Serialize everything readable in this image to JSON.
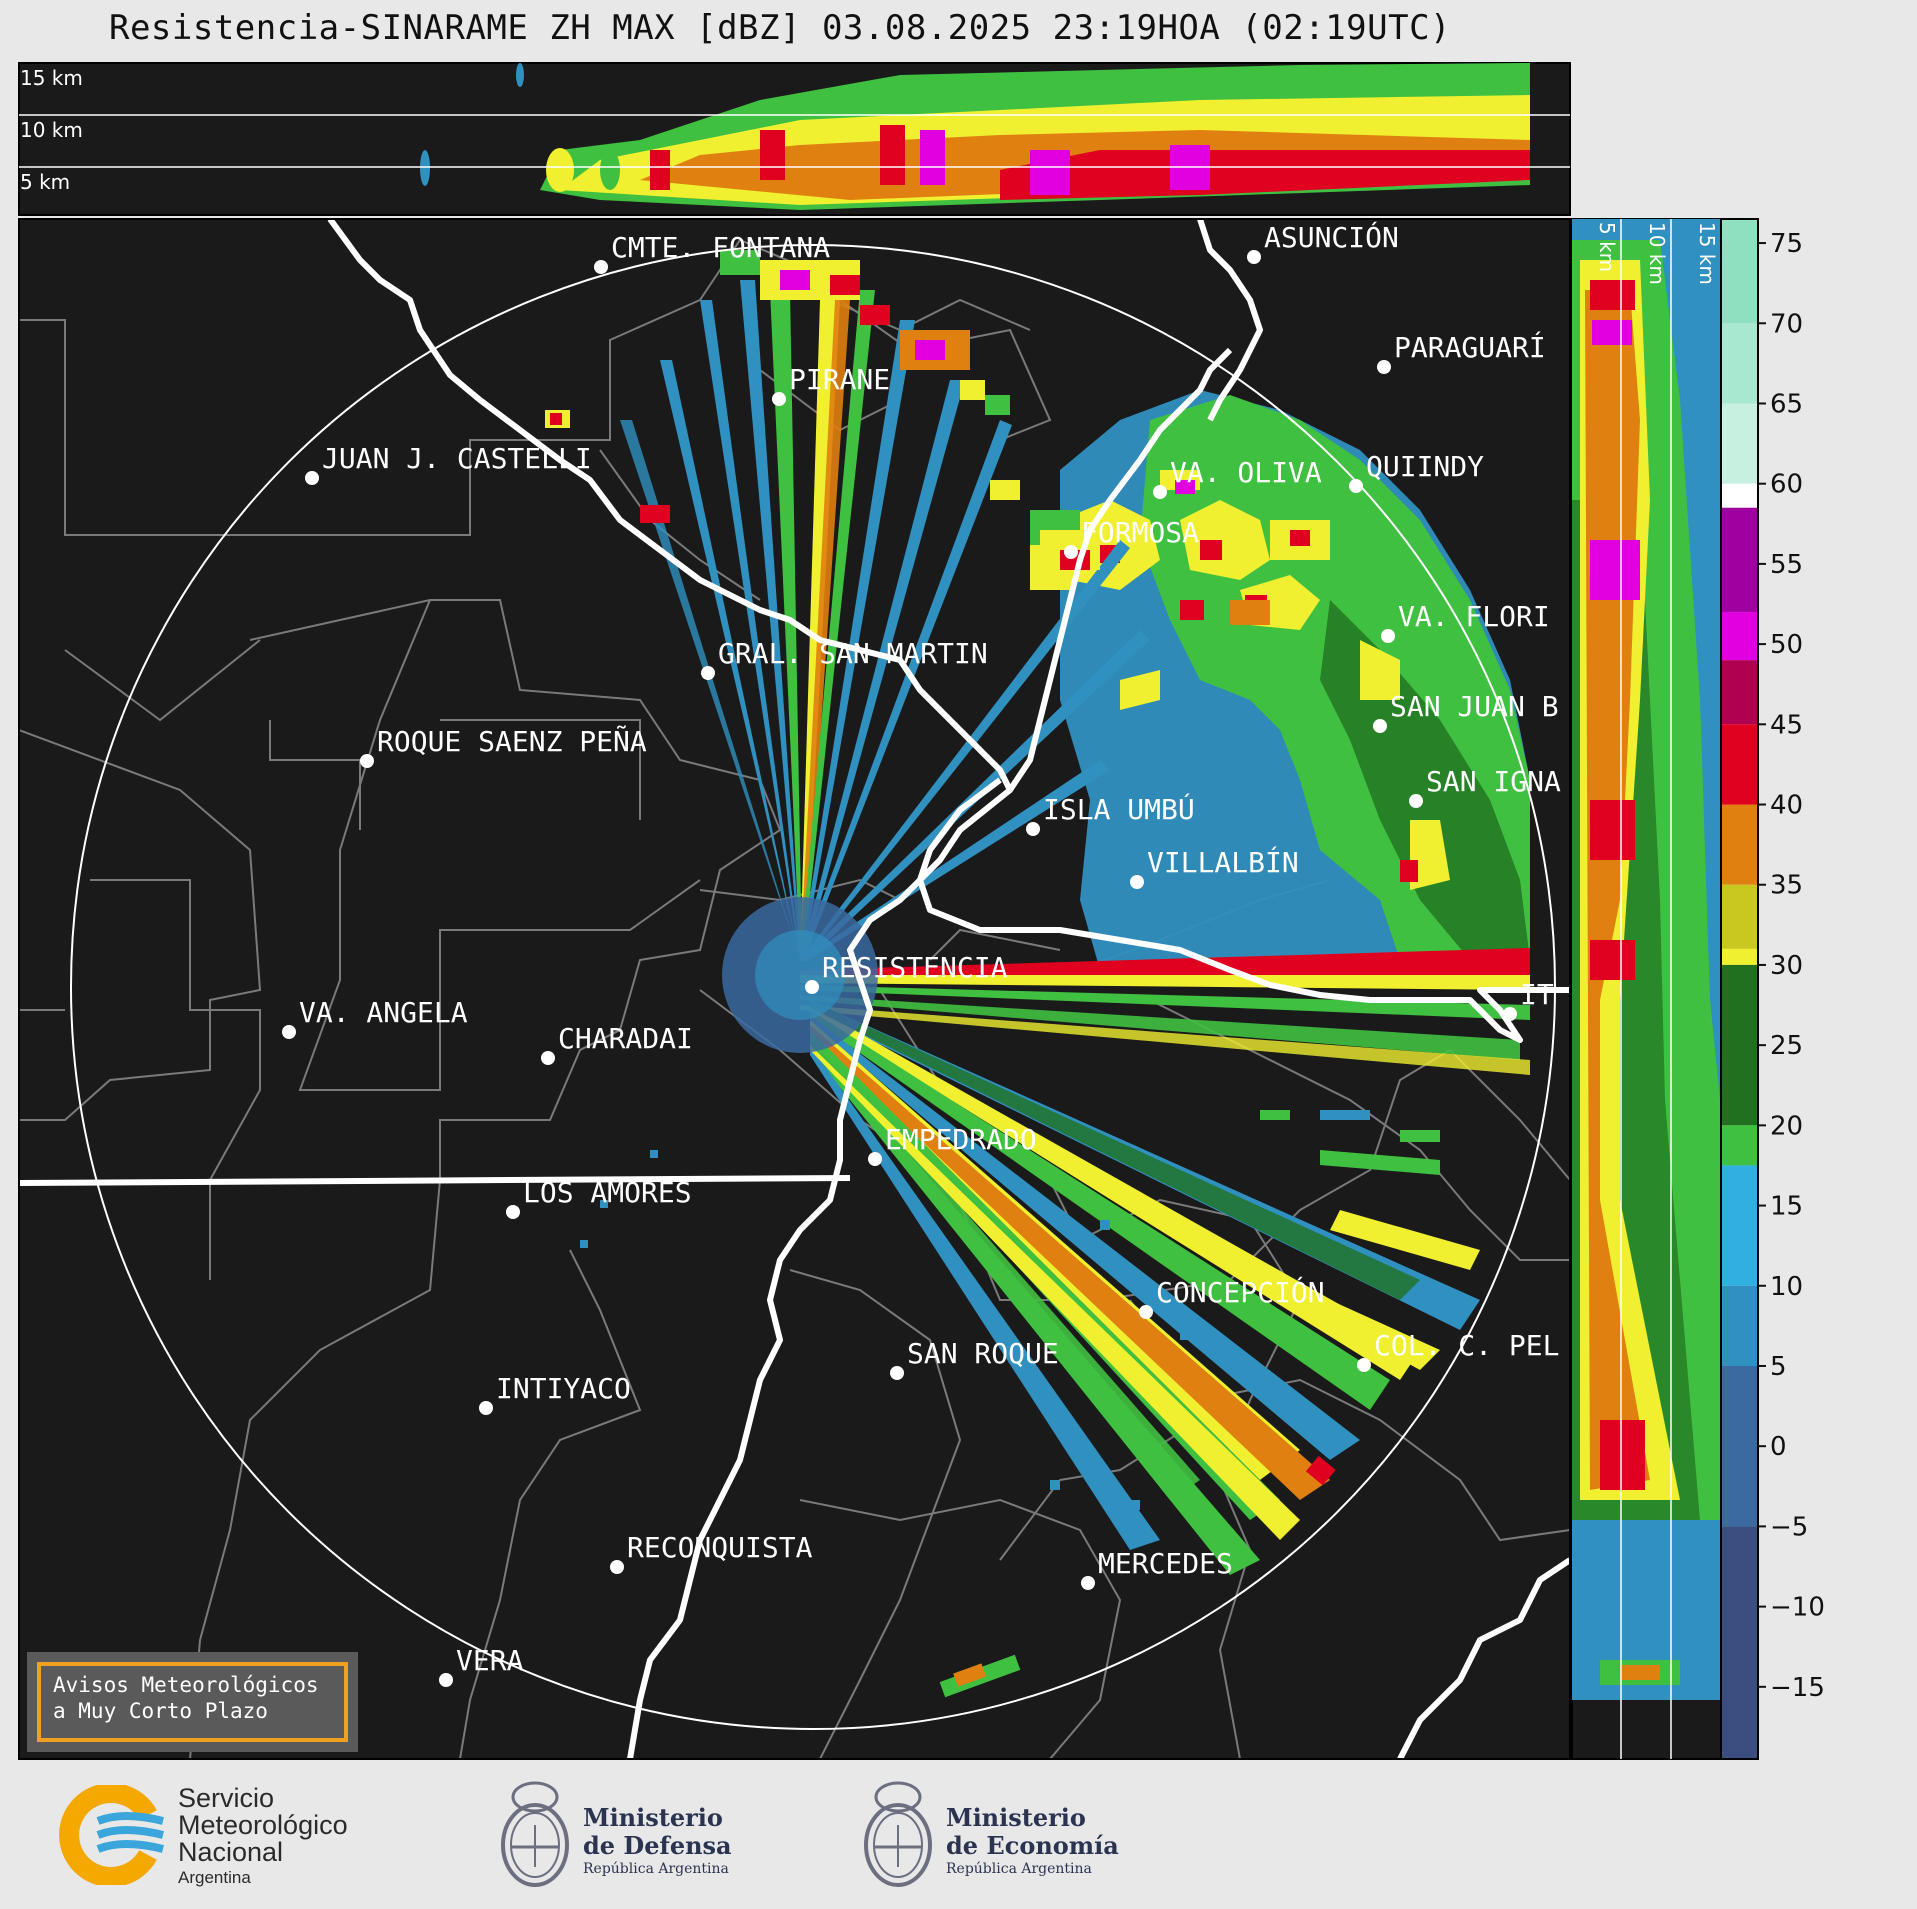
{
  "title": "Resistencia-SINARAME ZH MAX [dBZ] 03.08.2025 23:19HOA (02:19UTC)",
  "top_panel_km": [
    "15 km",
    "10 km",
    "5 km"
  ],
  "side_panel_km": [
    "5 km",
    "10 km",
    "15 km"
  ],
  "colorbar": {
    "ticks": [
      "75",
      "70",
      "65",
      "60",
      "55",
      "50",
      "45",
      "40",
      "35",
      "30",
      "25",
      "20",
      "15",
      "10",
      "5",
      "0",
      "−5",
      "−10",
      "−15"
    ],
    "colors": [
      "#8ee0c0",
      "#a8e8d0",
      "#c8f0e0",
      "#ffffff",
      "#a000a0",
      "#e000e0",
      "#b00050",
      "#e00020",
      "#e08010",
      "#c8c820",
      "#f0f030",
      "#207020",
      "#40c040",
      "#30b0e0",
      "#3090c0",
      "#3a6aa0",
      "#3a4f80"
    ]
  },
  "cities": [
    {
      "name": "CMTE. FONTANA"
    },
    {
      "name": "ASUNCIÓN"
    },
    {
      "name": "PARAGUARÍ"
    },
    {
      "name": "PIRANE"
    },
    {
      "name": "JUAN J. CASTELLI"
    },
    {
      "name": "VA. OLIVA"
    },
    {
      "name": "QUIINDY"
    },
    {
      "name": "FORMOSA"
    },
    {
      "name": "VA. FLORI"
    },
    {
      "name": "GRAL. SAN MARTIN"
    },
    {
      "name": "SAN JUAN B"
    },
    {
      "name": "ROQUE SAENZ PEÑA"
    },
    {
      "name": "SAN IGNA"
    },
    {
      "name": "ISLA UMBÚ"
    },
    {
      "name": "VILLALBÍN"
    },
    {
      "name": "RESISTENCIA"
    },
    {
      "name": "IT"
    },
    {
      "name": "VA. ANGELA"
    },
    {
      "name": "CHARADAI"
    },
    {
      "name": "EMPEDRADO"
    },
    {
      "name": "LOS AMORES"
    },
    {
      "name": "CONCEPCIÓN"
    },
    {
      "name": "COL. C. PEL"
    },
    {
      "name": "SAN ROQUE"
    },
    {
      "name": "INTIYACO"
    },
    {
      "name": "RECONQUISTA"
    },
    {
      "name": "MERCEDES"
    },
    {
      "name": "VERA"
    }
  ],
  "avisos": {
    "line1": "Avisos Meteorológicos",
    "line2": "a Muy Corto Plazo"
  },
  "logos": {
    "smn": {
      "line1": "Servicio",
      "line2": "Meteorológico",
      "line3": "Nacional",
      "line4": "Argentina"
    },
    "defensa": {
      "line1": "Ministerio",
      "line2": "de Defensa",
      "line3": "República Argentina"
    },
    "economia": {
      "line1": "Ministerio",
      "line2": "de Economía",
      "line3": "República Argentina"
    }
  }
}
